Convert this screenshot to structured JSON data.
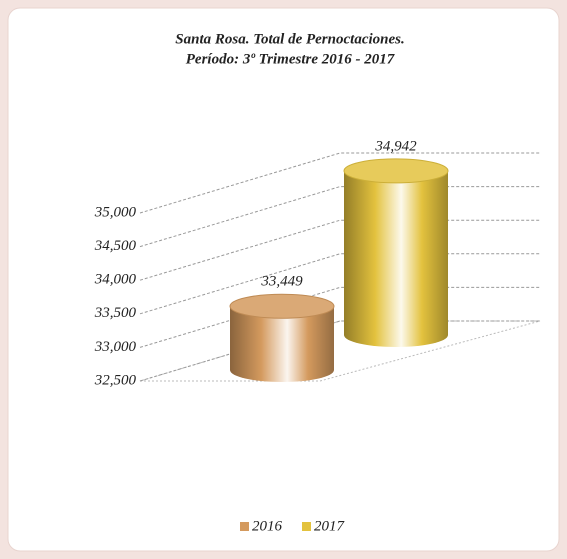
{
  "chart_data": {
    "type": "cylinder",
    "title": "Santa Rosa. Total de Pernoctaciones.",
    "subtitle": "Período: 3º Trimestre 2016 - 2017",
    "categories": [
      null
    ],
    "series": [
      {
        "name": "2016",
        "color": "#d49a5e",
        "values": [
          33449
        ],
        "value_labels": [
          "33,449"
        ]
      },
      {
        "name": "2017",
        "color": "#e3c23e",
        "values": [
          34942
        ],
        "value_labels": [
          "34,942"
        ]
      }
    ],
    "ylim": [
      32500,
      35000
    ],
    "yticks": [
      {
        "value": 32500,
        "label": "32,500"
      },
      {
        "value": 33000,
        "label": "33,000"
      },
      {
        "value": 33500,
        "label": "33,500"
      },
      {
        "value": 34000,
        "label": "34,000"
      },
      {
        "value": 34500,
        "label": "34,500"
      },
      {
        "value": 35000,
        "label": "35,000"
      }
    ],
    "grid": true
  }
}
